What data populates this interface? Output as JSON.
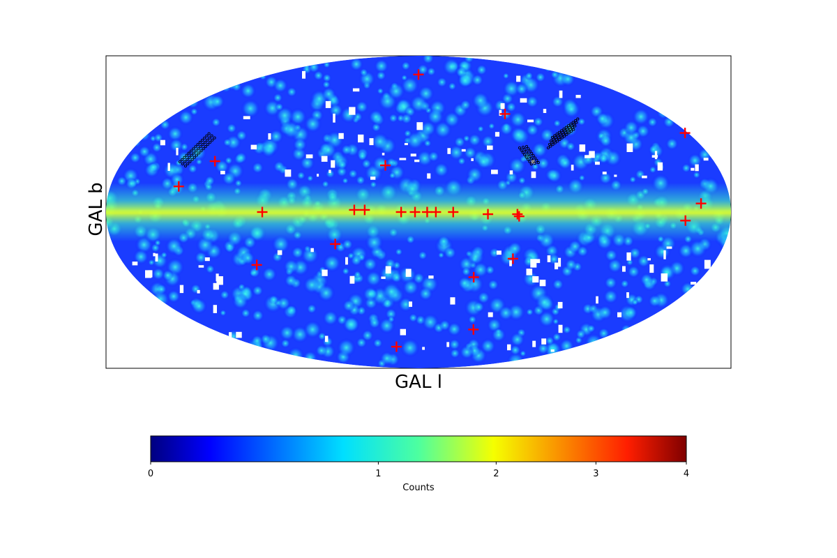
{
  "chart_data": {
    "type": "heatmap",
    "projection": "mollweide",
    "title": "",
    "xlabel": "GAL l",
    "ylabel": "GAL b",
    "colormap": "jet",
    "colorbar": {
      "label": "Counts",
      "ticks": [
        "0",
        "1",
        "2",
        "3",
        "4"
      ],
      "tick_values": [
        0,
        1,
        2,
        3,
        4
      ],
      "range": [
        0,
        4
      ],
      "scale": "nonlinear"
    },
    "background_level": 0.3,
    "galactic_plane_level": 1.0,
    "marker_color": "#ff0000",
    "ring_color": "#000000",
    "sources": [
      {
        "l": 0,
        "b": 72
      },
      {
        "l": -64,
        "b": 48
      },
      {
        "l": 20,
        "b": 22
      },
      {
        "l": 124,
        "b": 24
      },
      {
        "l": -178,
        "b": 38
      },
      {
        "l": 140,
        "b": 12
      },
      {
        "l": 90,
        "b": 0
      },
      {
        "l": 37,
        "b": 1
      },
      {
        "l": 31,
        "b": 1
      },
      {
        "l": 10,
        "b": 0
      },
      {
        "l": 2,
        "b": 0
      },
      {
        "l": -5,
        "b": 0
      },
      {
        "l": -10,
        "b": 0
      },
      {
        "l": -20,
        "b": 0
      },
      {
        "l": -40,
        "b": -1
      },
      {
        "l": -57,
        "b": -1
      },
      {
        "l": -58,
        "b": -2
      },
      {
        "l": -163,
        "b": 4
      },
      {
        "l": -154,
        "b": -4
      },
      {
        "l": 49,
        "b": -15
      },
      {
        "l": -57,
        "b": -22
      },
      {
        "l": 99,
        "b": -25
      },
      {
        "l": -35,
        "b": -31
      },
      {
        "l": -48,
        "b": -59
      },
      {
        "l": 25,
        "b": -70
      }
    ]
  }
}
